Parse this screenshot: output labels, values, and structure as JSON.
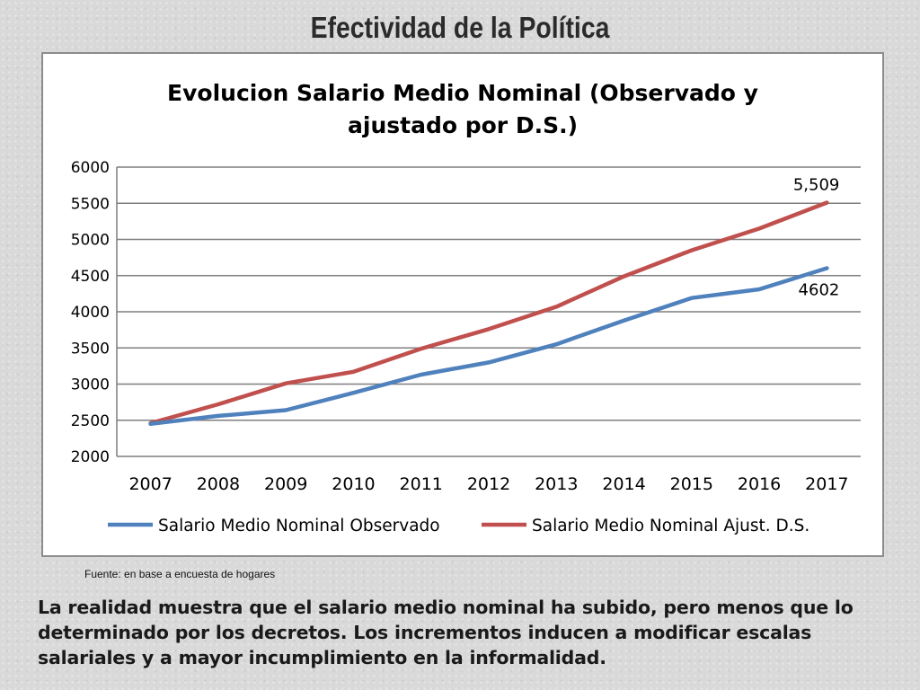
{
  "slide": {
    "title": "Efectividad de la Política",
    "source": "Fuente: en base a encuesta de hogares",
    "conclusion": "La realidad muestra que el salario medio nominal ha subido, pero menos que lo determinado por los decretos. Los incrementos inducen a modificar escalas salariales y a mayor incumplimiento en la informalidad."
  },
  "chart_data": {
    "type": "line",
    "title": "Evolucion Salario Medio Nominal (Observado y ajustado por D.S.)",
    "title_lines": [
      "Evolucion Salario Medio Nominal (Observado y",
      "ajustado por D.S.)"
    ],
    "xlabel": "",
    "ylabel": "",
    "x": [
      "2007",
      "2008",
      "2009",
      "2010",
      "2011",
      "2012",
      "2013",
      "2014",
      "2015",
      "2016",
      "2017"
    ],
    "ylim": [
      2000,
      6000
    ],
    "yticks": [
      "6000",
      "5500",
      "5000",
      "4500",
      "4000",
      "3500",
      "3000",
      "2500",
      "2000"
    ],
    "grid": true,
    "legend_position": "bottom",
    "series": [
      {
        "name": "Salario Medio Nominal Observado",
        "color": "#4f81bd",
        "values": [
          2450,
          2560,
          2640,
          2880,
          3130,
          3300,
          3550,
          3880,
          4190,
          4310,
          4602
        ],
        "end_label": "4602"
      },
      {
        "name": "Salario Medio Nominal Ajust. D.S.",
        "color": "#c0504d",
        "values": [
          2460,
          2720,
          3010,
          3170,
          3490,
          3760,
          4070,
          4490,
          4850,
          5150,
          5509
        ],
        "end_label": "5,509"
      }
    ]
  }
}
